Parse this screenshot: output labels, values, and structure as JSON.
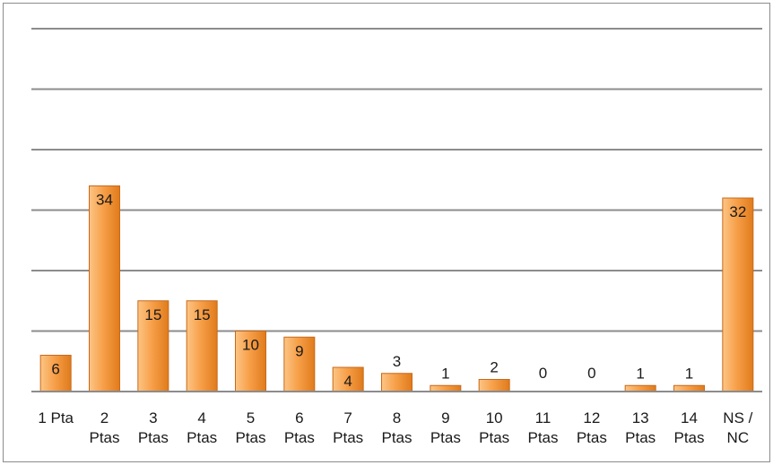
{
  "chart_data": {
    "type": "bar",
    "title": "",
    "xlabel": "",
    "ylabel": "",
    "categories": [
      [
        "1 Pta"
      ],
      [
        "2",
        "Ptas"
      ],
      [
        "3",
        "Ptas"
      ],
      [
        "4",
        "Ptas"
      ],
      [
        "5",
        "Ptas"
      ],
      [
        "6",
        "Ptas"
      ],
      [
        "7",
        "Ptas"
      ],
      [
        "8",
        "Ptas"
      ],
      [
        "9",
        "Ptas"
      ],
      [
        "10",
        "Ptas"
      ],
      [
        "11",
        "Ptas"
      ],
      [
        "12",
        "Ptas"
      ],
      [
        "13",
        "Ptas"
      ],
      [
        "14",
        "Ptas"
      ],
      [
        "NS /",
        "NC"
      ]
    ],
    "values": [
      6,
      34,
      15,
      15,
      10,
      9,
      4,
      3,
      1,
      2,
      0,
      0,
      1,
      1,
      32
    ],
    "ylim": [
      0,
      60
    ],
    "gridlines": [
      10,
      20,
      30,
      40,
      50,
      60
    ],
    "grid": true,
    "legend": "none",
    "colors": {
      "bar_light": "#fcc585",
      "bar_mid": "#f7a04a",
      "bar_dark": "#e07b1c",
      "bar_edge": "#c8691a",
      "grid": "#8c8c8c",
      "axis": "#8c8c8c"
    }
  }
}
